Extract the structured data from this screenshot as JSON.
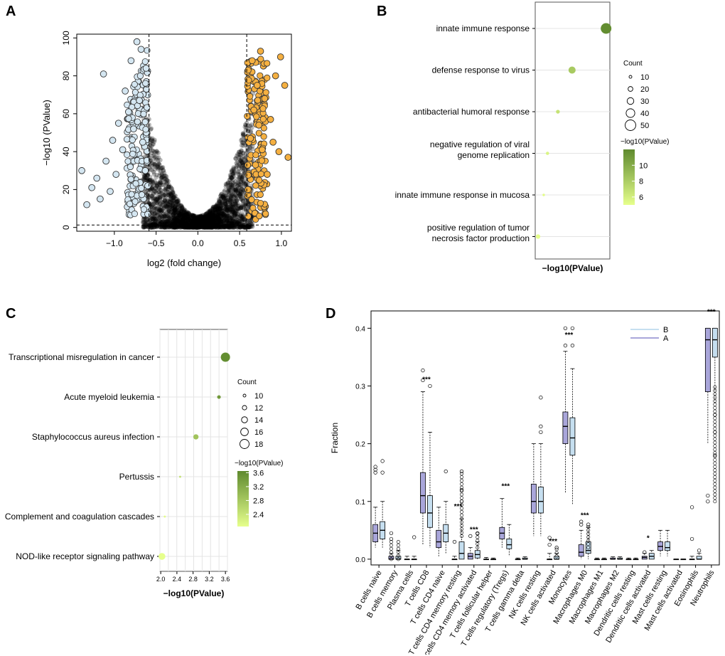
{
  "panel_labels": {
    "A": "A",
    "B": "B",
    "C": "C",
    "D": "D"
  },
  "chart_data": [
    {
      "id": "A",
      "type": "scatter",
      "title": "",
      "xlabel": "log2 (fold change)",
      "ylabel": "−log10 (PValue)",
      "xlim": [
        -1.45,
        1.12
      ],
      "ylim": [
        -2,
        102
      ],
      "xticks": [
        "−1.0",
        "−0.5",
        "0.0",
        "0.5",
        "1.0"
      ],
      "xtick_values": [
        -1.0,
        -0.5,
        0.0,
        0.5,
        1.0
      ],
      "yticks": [
        "0",
        "20",
        "40",
        "60",
        "80",
        "100"
      ],
      "ytick_values": [
        0,
        20,
        40,
        60,
        80,
        100
      ],
      "threshold_lines": {
        "x": [
          -0.585,
          0.585
        ],
        "y": 1.3
      },
      "colors": {
        "down": "#d4e6f1",
        "up": "#f5b041",
        "ns": "#000000",
        "outline": "#333333"
      },
      "points_down": [
        [
          -1.39,
          30
        ],
        [
          -1.33,
          12
        ],
        [
          -1.27,
          21
        ],
        [
          -1.21,
          26
        ],
        [
          -1.17,
          15
        ],
        [
          -1.13,
          81
        ],
        [
          -1.1,
          35
        ],
        [
          -1.05,
          19
        ],
        [
          -1.02,
          46
        ],
        [
          -0.98,
          28
        ],
        [
          -0.95,
          55
        ],
        [
          -0.9,
          41
        ],
        [
          -0.87,
          72
        ],
        [
          -0.83,
          61
        ],
        [
          -0.8,
          88
        ],
        [
          -0.77,
          52
        ],
        [
          -0.73,
          98
        ],
        [
          -0.7,
          67
        ],
        [
          -0.68,
          94
        ],
        [
          -0.66,
          45
        ],
        [
          -0.63,
          30
        ],
        [
          -0.62,
          84
        ],
        [
          -0.6,
          22
        ]
      ],
      "points_up": [
        [
          0.6,
          20
        ],
        [
          0.63,
          47
        ],
        [
          0.65,
          88
        ],
        [
          0.67,
          62
        ],
        [
          0.69,
          33
        ],
        [
          0.71,
          75
        ],
        [
          0.73,
          54
        ],
        [
          0.75,
          93
        ],
        [
          0.77,
          41
        ],
        [
          0.8,
          68
        ],
        [
          0.83,
          28
        ],
        [
          0.87,
          57
        ],
        [
          0.9,
          45
        ],
        [
          0.93,
          80
        ],
        [
          0.97,
          40
        ],
        [
          0.99,
          90
        ],
        [
          1.04,
          75
        ],
        [
          1.08,
          37
        ]
      ]
    },
    {
      "id": "B",
      "type": "scatter",
      "xlabel": "−log10(PValue)",
      "categories": [
        "innate immune response",
        "defense response to virus",
        "antibacterial humoral response",
        "negative regulation of viral genome replication",
        "innate immune response in mucosa",
        "positive regulation of tumor necrosis factor production"
      ],
      "category_lines": [
        [
          "innate immune response"
        ],
        [
          "defense response to virus"
        ],
        [
          "antibacterial humoral response"
        ],
        [
          "negative regulation of viral",
          "genome replication"
        ],
        [
          "innate immune response in mucosa"
        ],
        [
          "positive regulation of tumor",
          "necrosis factor production"
        ]
      ],
      "values": [
        11.8,
        8.2,
        6.7,
        5.6,
        5.2,
        4.6
      ],
      "counts": [
        50,
        32,
        15,
        12,
        8,
        18
      ],
      "xlim": [
        4.3,
        12.2
      ],
      "size_legend": {
        "title": "Count",
        "values": [
          10,
          20,
          30,
          40,
          50
        ]
      },
      "color_legend": {
        "title": "−log10(PValue)",
        "ticks": [
          "10",
          "8",
          "6"
        ],
        "tick_values": [
          10,
          8,
          6
        ],
        "range": [
          5,
          12
        ]
      },
      "color_low": "#e6ff8c",
      "color_high": "#5f8a2e"
    },
    {
      "id": "C",
      "type": "scatter",
      "xlabel": "−log10(PValue)",
      "categories": [
        "Transcriptional misregulation in cancer",
        "Acute myeloid leukemia",
        "Staphylococcus aureus infection",
        "Pertussis",
        "Complement and coagulation cascades",
        "NOD-like receptor signaling pathway"
      ],
      "values": [
        3.6,
        3.44,
        2.87,
        2.48,
        2.1,
        2.03
      ],
      "counts": [
        18,
        11,
        13,
        9,
        9,
        15
      ],
      "xlim": [
        1.98,
        3.65
      ],
      "xticks": [
        "2.0",
        "2.4",
        "2.8",
        "3.2",
        "3.6"
      ],
      "xtick_values": [
        2.0,
        2.4,
        2.8,
        3.2,
        3.6
      ],
      "size_legend": {
        "title": "Count",
        "values": [
          10,
          12,
          14,
          16,
          18
        ]
      },
      "color_legend": {
        "title": "−log10(PValue)",
        "ticks": [
          "3.6",
          "3.2",
          "2.8",
          "2.4"
        ],
        "tick_values": [
          3.6,
          3.2,
          2.8,
          2.4
        ],
        "range": [
          2.05,
          3.65
        ]
      },
      "color_low": "#e6ff8c",
      "color_high": "#5f8a2e"
    },
    {
      "id": "D",
      "type": "box",
      "ylabel": "Fraction",
      "ylim": [
        -0.01,
        0.43
      ],
      "yticks": [
        "0.0",
        "0.1",
        "0.2",
        "0.3",
        "0.4"
      ],
      "ytick_values": [
        0.0,
        0.1,
        0.2,
        0.3,
        0.4
      ],
      "legend": [
        {
          "name": "B",
          "color": "#c6dff0"
        },
        {
          "name": "A",
          "color": "#a9a6da"
        }
      ],
      "categories": [
        "B cells naive",
        "B cells memory",
        "Plasma cells",
        "T cells CD8",
        "T cells CD4 naive",
        "T cells CD4 memory resting",
        "T cells CD4 memory activated",
        "T cells follicular helper",
        "T cells regulatory (Tregs)",
        "T cells gamma delta",
        "NK cells resting",
        "NK cells activated",
        "Monocytes",
        "Macrophages M0",
        "Macrophages M1",
        "Macrophages M2",
        "Dendritic cells resting",
        "Dendritic cells activated",
        "Mast cells resting",
        "Mast cells activated",
        "Eosinophils",
        "Neutrophils"
      ],
      "significance": [
        "",
        "",
        "",
        "***",
        "",
        "***",
        "***",
        "",
        "***",
        "",
        "",
        "***",
        "***",
        "***",
        "",
        "",
        "",
        "*",
        "",
        "",
        "",
        "***"
      ],
      "series_A": [
        [
          0.02,
          0.03,
          0.045,
          0.06,
          0.09
        ],
        [
          0.0,
          0.0,
          0.0,
          0.005,
          0.01
        ],
        [
          0.0,
          0.0,
          0.0,
          0.0,
          0.005
        ],
        [
          0.025,
          0.08,
          0.11,
          0.15,
          0.29
        ],
        [
          0.005,
          0.02,
          0.03,
          0.05,
          0.09
        ],
        [
          0.0,
          0.0,
          0.0,
          0.0,
          0.005
        ],
        [
          0.0,
          0.0,
          0.005,
          0.01,
          0.02
        ],
        [
          0.0,
          0.0,
          0.0,
          0.0,
          0.003
        ],
        [
          0.02,
          0.035,
          0.045,
          0.055,
          0.105
        ],
        [
          0.0,
          0.0,
          0.0,
          0.0,
          0.002
        ],
        [
          0.04,
          0.08,
          0.1,
          0.13,
          0.2
        ],
        [
          0.0,
          0.0,
          0.0,
          0.0,
          0.01
        ],
        [
          0.115,
          0.2,
          0.23,
          0.255,
          0.36
        ],
        [
          0.0,
          0.005,
          0.012,
          0.025,
          0.05
        ],
        [
          0.0,
          0.0,
          0.0,
          0.0,
          0.002
        ],
        [
          0.0,
          0.0,
          0.0,
          0.002,
          0.004
        ],
        [
          0.0,
          0.0,
          0.0,
          0.0,
          0.002
        ],
        [
          0.0,
          0.0,
          0.003,
          0.005,
          0.01
        ],
        [
          0.005,
          0.015,
          0.022,
          0.03,
          0.05
        ],
        [
          0.0,
          0.0,
          0.0,
          0.0,
          0.0
        ],
        [
          0.0,
          0.0,
          0.0,
          0.0,
          0.005
        ],
        [
          0.2,
          0.29,
          0.38,
          0.4,
          0.4
        ]
      ],
      "series_B": [
        [
          0.02,
          0.035,
          0.05,
          0.065,
          0.1
        ],
        [
          0.0,
          0.0,
          0.0,
          0.005,
          0.015
        ],
        [
          0.0,
          0.0,
          0.0,
          0.0,
          0.005
        ],
        [
          0.02,
          0.055,
          0.08,
          0.11,
          0.22
        ],
        [
          0.01,
          0.03,
          0.045,
          0.06,
          0.1
        ],
        [
          0.0,
          0.0,
          0.01,
          0.03,
          0.07
        ],
        [
          0.0,
          0.002,
          0.008,
          0.015,
          0.03
        ],
        [
          0.0,
          0.0,
          0.0,
          0.0,
          0.002
        ],
        [
          0.005,
          0.018,
          0.025,
          0.035,
          0.06
        ],
        [
          0.0,
          0.0,
          0.0,
          0.002,
          0.004
        ],
        [
          0.04,
          0.08,
          0.1,
          0.125,
          0.2
        ],
        [
          0.0,
          0.0,
          0.0,
          0.005,
          0.01
        ],
        [
          0.095,
          0.18,
          0.21,
          0.245,
          0.33
        ],
        [
          0.0,
          0.01,
          0.015,
          0.03,
          0.055
        ],
        [
          0.0,
          0.0,
          0.0,
          0.0,
          0.002
        ],
        [
          0.0,
          0.0,
          0.0,
          0.002,
          0.004
        ],
        [
          0.0,
          0.0,
          0.0,
          0.0,
          0.002
        ],
        [
          0.0,
          0.0,
          0.005,
          0.01,
          0.015
        ],
        [
          0.005,
          0.015,
          0.02,
          0.03,
          0.05
        ],
        [
          0.0,
          0.0,
          0.0,
          0.0,
          0.0
        ],
        [
          0.0,
          0.0,
          0.0,
          0.005,
          0.01
        ],
        [
          0.27,
          0.35,
          0.38,
          0.4,
          0.4
        ]
      ],
      "outliers_A": [
        [
          0,
          0.16
        ],
        [
          0,
          0.155
        ],
        [
          0,
          0.15
        ],
        [
          1,
          0.045
        ],
        [
          1,
          0.035
        ],
        [
          3,
          0.31
        ],
        [
          3,
          0.327
        ],
        [
          5,
          0.03
        ],
        [
          6,
          0.04
        ],
        [
          11,
          0.025
        ],
        [
          11,
          0.037
        ],
        [
          12,
          0.37
        ],
        [
          12,
          0.4
        ],
        [
          13,
          0.065
        ],
        [
          13,
          0.06
        ],
        [
          17,
          0.012
        ],
        [
          20,
          0.035
        ],
        [
          20,
          0.09
        ],
        [
          21,
          0.11
        ],
        [
          21,
          0.1
        ]
      ],
      "outliers_B": [
        [
          0,
          0.17
        ],
        [
          0,
          0.15
        ],
        [
          2,
          0.038
        ],
        [
          3,
          0.3
        ],
        [
          4,
          0.152
        ],
        [
          5,
          0.152
        ],
        [
          5,
          0.12
        ],
        [
          5,
          0.1
        ],
        [
          6,
          0.045
        ],
        [
          10,
          0.28
        ],
        [
          10,
          0.23
        ],
        [
          10,
          0.22
        ],
        [
          11,
          0.02
        ],
        [
          12,
          0.4
        ],
        [
          12,
          0.37
        ],
        [
          13,
          0.06
        ],
        [
          20,
          0.015
        ],
        [
          21,
          0.25
        ],
        [
          21,
          0.22
        ],
        [
          21,
          0.18
        ]
      ]
    }
  ]
}
